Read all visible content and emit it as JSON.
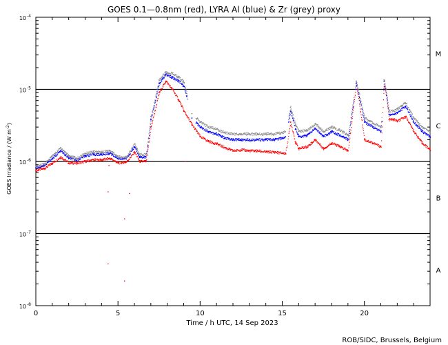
{
  "chart_data": {
    "type": "scatter",
    "title": "GOES 0.1—0.8nm (red), LYRA Al (blue) & Zr (grey) proxy",
    "xlabel": "Time / h UTC, 14 Sep 2023",
    "ylabel_main": "GOES Irradiance / (W m",
    "ylabel_sup": "-2",
    "ylabel_close": ")",
    "xlim": [
      0,
      24
    ],
    "ylim_log10": [
      -8,
      -4
    ],
    "y_scale": "log",
    "x_ticks": [
      {
        "v": 0,
        "label": "0"
      },
      {
        "v": 5,
        "label": "5"
      },
      {
        "v": 10,
        "label": "10"
      },
      {
        "v": 15,
        "label": "15"
      },
      {
        "v": 20,
        "label": "20"
      }
    ],
    "y_ticks": [
      {
        "exp": -8,
        "base": "10",
        "sup": "-8"
      },
      {
        "exp": -7,
        "base": "10",
        "sup": "-7"
      },
      {
        "exp": -6,
        "base": "10",
        "sup": "-6"
      },
      {
        "exp": -5,
        "base": "10",
        "sup": "-5"
      },
      {
        "exp": -4,
        "base": "10",
        "sup": "-4"
      }
    ],
    "flare_classes": [
      {
        "label": "A",
        "log10_mid": -7.5
      },
      {
        "label": "B",
        "log10_mid": -6.5
      },
      {
        "label": "C",
        "log10_mid": -5.5
      },
      {
        "label": "M",
        "log10_mid": -4.5
      }
    ],
    "threshold_lines_log10": [
      -7,
      -6,
      -5
    ],
    "series": [
      {
        "name": "GOES 0.1-0.8nm",
        "color": "#ff0000",
        "x": [
          0,
          0.5,
          1,
          1.5,
          2,
          2.5,
          3,
          3.5,
          4,
          4.5,
          5,
          5.5,
          6,
          6.3,
          6.7,
          7,
          7.5,
          7.9,
          8.3,
          8.7,
          9,
          9.5,
          10,
          10.5,
          11,
          11.5,
          12,
          12.5,
          13,
          13.5,
          14,
          14.5,
          15,
          15.2,
          15.5,
          15.8,
          16,
          16.5,
          17,
          17.5,
          18,
          18.5,
          19,
          19.5,
          20,
          20.5,
          21,
          21.2,
          21.5,
          21.8,
          22,
          22.5,
          23,
          23.5,
          24
        ],
        "y": [
          7.5e-07,
          8e-07,
          9.5e-07,
          1.15e-06,
          9.5e-07,
          9.5e-07,
          1e-06,
          1.05e-06,
          1.05e-06,
          1.1e-06,
          9.5e-07,
          9.8e-07,
          1.35e-06,
          1e-06,
          1e-06,
          3e-06,
          9e-06,
          1.3e-05,
          1e-05,
          7e-06,
          5e-06,
          3.2e-06,
          2.2e-06,
          1.9e-06,
          1.75e-06,
          1.55e-06,
          1.4e-06,
          1.45e-06,
          1.4e-06,
          1.4e-06,
          1.35e-06,
          1.35e-06,
          1.3e-06,
          1.3e-06,
          3.5e-06,
          1.8e-06,
          1.5e-06,
          1.6e-06,
          2e-06,
          1.5e-06,
          1.8e-06,
          1.6e-06,
          1.4e-06,
          1.2e-05,
          2e-06,
          1.8e-06,
          1.6e-06,
          1.3e-05,
          3.8e-06,
          3.8e-06,
          3.6e-06,
          4.2e-06,
          2.6e-06,
          1.8e-06,
          1.45e-06
        ]
      },
      {
        "name": "LYRA Al proxy",
        "color": "#0000ff",
        "x": [
          0,
          0.5,
          1,
          1.5,
          2,
          2.5,
          3,
          3.5,
          4,
          4.5,
          5,
          5.5,
          6,
          6.3,
          6.7,
          7,
          7.5,
          7.9,
          8.3,
          8.7,
          9,
          9.5,
          10,
          10.5,
          11,
          11.5,
          12,
          12.5,
          13,
          13.5,
          14,
          14.5,
          15,
          15.2,
          15.5,
          15.8,
          16,
          16.5,
          17,
          17.5,
          18,
          18.5,
          19,
          19.5,
          20,
          20.5,
          21,
          21.2,
          21.5,
          21.8,
          22,
          22.5,
          23,
          23.5,
          24
        ],
        "y": [
          8.2e-07,
          8.8e-07,
          1.1e-06,
          1.4e-06,
          1.1e-06,
          1.05e-06,
          1.2e-06,
          1.25e-06,
          1.25e-06,
          1.3e-06,
          1.1e-06,
          1.1e-06,
          1.6e-06,
          1.15e-06,
          1.15e-06,
          3.8e-06,
          1.2e-05,
          1.6e-05,
          1.45e-05,
          1.3e-05,
          1.1e-05,
          4e-06,
          3e-06,
          2.6e-06,
          2.4e-06,
          2.1e-06,
          2e-06,
          2e-06,
          2e-06,
          2e-06,
          2e-06,
          2e-06,
          2.1e-06,
          2.2e-06,
          5e-06,
          2.8e-06,
          2.2e-06,
          2.3e-06,
          2.9e-06,
          2.2e-06,
          2.6e-06,
          2.3e-06,
          2e-06,
          1.2e-05,
          3.5e-06,
          3e-06,
          2.6e-06,
          1.3e-05,
          4.5e-06,
          4.5e-06,
          4.8e-06,
          5.8e-06,
          3.5e-06,
          2.6e-06,
          2.2e-06
        ]
      },
      {
        "name": "LYRA Zr proxy",
        "color": "#8c8c8c",
        "x": [
          0,
          0.5,
          1,
          1.5,
          2,
          2.5,
          3,
          3.5,
          4,
          4.5,
          5,
          5.5,
          6,
          6.3,
          6.7,
          7,
          7.5,
          7.9,
          8.3,
          8.7,
          9,
          9.5,
          10,
          10.5,
          11,
          11.5,
          12,
          12.5,
          13,
          13.5,
          14,
          14.5,
          15,
          15.2,
          15.5,
          15.8,
          16,
          16.5,
          17,
          17.5,
          18,
          18.5,
          19,
          19.5,
          20,
          20.5,
          21,
          21.2,
          21.5,
          21.8,
          22,
          22.5,
          23,
          23.5,
          24
        ],
        "y": [
          8.5e-07,
          9.2e-07,
          1.2e-06,
          1.55e-06,
          1.2e-06,
          1.1e-06,
          1.3e-06,
          1.35e-06,
          1.35e-06,
          1.4e-06,
          1.15e-06,
          1.15e-06,
          1.75e-06,
          1.25e-06,
          1.25e-06,
          4.2e-06,
          1.35e-05,
          1.75e-05,
          1.65e-05,
          1.45e-05,
          1.25e-05,
          4.6e-06,
          3.5e-06,
          3e-06,
          2.8e-06,
          2.5e-06,
          2.4e-06,
          2.4e-06,
          2.4e-06,
          2.4e-06,
          2.4e-06,
          2.4e-06,
          2.5e-06,
          2.6e-06,
          5.6e-06,
          3.2e-06,
          2.6e-06,
          2.7e-06,
          3.3e-06,
          2.6e-06,
          3e-06,
          2.7e-06,
          2.3e-06,
          1.3e-05,
          4e-06,
          3.4e-06,
          3e-06,
          1.35e-05,
          5e-06,
          5e-06,
          5.4e-06,
          6.5e-06,
          4e-06,
          3e-06,
          2.5e-06
        ]
      }
    ],
    "outliers": {
      "name": "GOES isolated points",
      "color": "#ff0000",
      "x": [
        4.4,
        5.7,
        4.45,
        5.4,
        9.1,
        4.4,
        5.4
      ],
      "y": [
        3.8e-07,
        3.6e-07,
        8.8e-07,
        1.6e-07,
        1e-06,
        3.8e-08,
        2.2e-08
      ]
    },
    "credit": "ROB/SIDC, Brussels, Belgium"
  }
}
